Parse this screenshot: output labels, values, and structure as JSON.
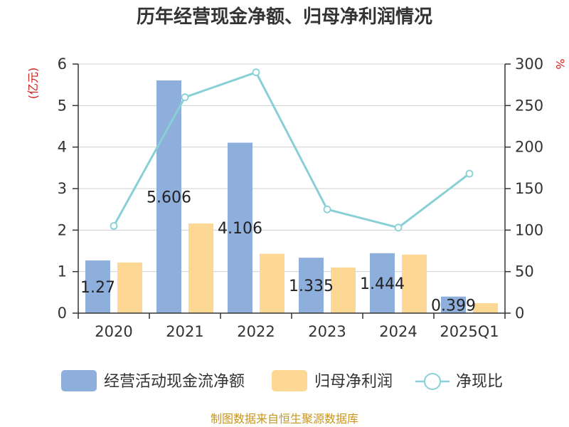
{
  "chart_data": {
    "type": "bar+line",
    "title": "历年经营现金净额、归母净利润情况",
    "categories": [
      "2020",
      "2021",
      "2022",
      "2023",
      "2024",
      "2025Q1"
    ],
    "left_axis": {
      "unit": "(亿元)",
      "range": [
        0,
        6
      ],
      "ticks": [
        "0",
        "1",
        "2",
        "3",
        "4",
        "5",
        "6"
      ]
    },
    "right_axis": {
      "unit": "%",
      "range": [
        0,
        300
      ],
      "ticks": [
        "0",
        "50",
        "100",
        "150",
        "200",
        "250",
        "300"
      ]
    },
    "series": [
      {
        "name": "经营活动现金流净额",
        "kind": "bar",
        "axis": "left",
        "color": "#8eaedb",
        "values": [
          1.27,
          5.606,
          4.106,
          1.335,
          1.444,
          0.399
        ],
        "labels": [
          "1.27",
          "5.606",
          "4.106",
          "1.335",
          "1.444",
          "0.399"
        ]
      },
      {
        "name": "归母净利润",
        "kind": "bar",
        "axis": "left",
        "color": "#fdd794",
        "values": [
          1.22,
          2.16,
          1.43,
          1.1,
          1.41,
          0.24
        ]
      },
      {
        "name": "净现比",
        "kind": "line",
        "axis": "right",
        "color": "#88d0d6",
        "values": [
          105,
          260,
          290,
          125,
          103,
          168
        ]
      }
    ],
    "grid": true,
    "legend": "bottom"
  },
  "source": "制图数据来自恒生聚源数据库"
}
